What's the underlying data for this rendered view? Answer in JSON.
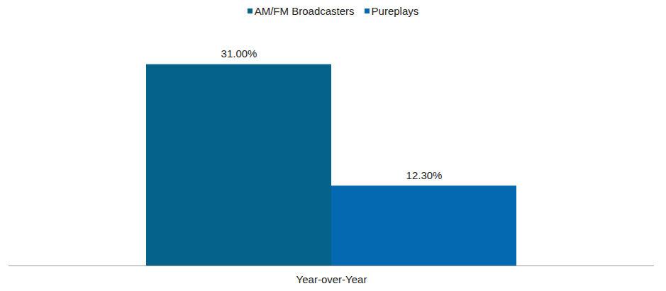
{
  "chart_data": {
    "type": "bar",
    "categories": [
      "Year-over-Year"
    ],
    "series": [
      {
        "name": "AM/FM Broadcasters",
        "color": "#05628a",
        "values": [
          31.0
        ],
        "value_labels": [
          "31.00%"
        ]
      },
      {
        "name": "Pureplays",
        "color": "#0569b1",
        "values": [
          12.3
        ],
        "value_labels": [
          "12.30%"
        ]
      }
    ],
    "ylim": [
      0,
      35
    ],
    "data_labels": true,
    "tick_labels": "x",
    "legend": "top"
  }
}
